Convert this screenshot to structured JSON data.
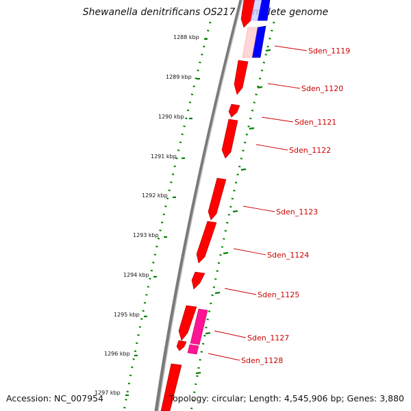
{
  "title": "Shewanella denitrificans OS217, complete genome",
  "footer": {
    "accession": "Accession: NC_007954",
    "summary": "Topology: circular; Length: 4,545,906 bp; Genes: 3,880"
  },
  "colors": {
    "forward_gene": "#ff0000",
    "reverse_gene": "#0000ff",
    "rna_gene": "#ff1493",
    "backbone": "#808080",
    "ticks": "#008000",
    "gene_label": "#cc0000"
  },
  "kbp_ticks": [
    {
      "label": "1288 kbp"
    },
    {
      "label": "1289 kbp"
    },
    {
      "label": "1290 kbp"
    },
    {
      "label": "1291 kbp"
    },
    {
      "label": "1292 kbp"
    },
    {
      "label": "1293 kbp"
    },
    {
      "label": "1294 kbp"
    },
    {
      "label": "1295 kbp"
    },
    {
      "label": "1296 kbp"
    },
    {
      "label": "1297 kbp"
    }
  ],
  "gene_labels": [
    {
      "label": "Sden_1119"
    },
    {
      "label": "Sden_1120"
    },
    {
      "label": "Sden_1121"
    },
    {
      "label": "Sden_1122"
    },
    {
      "label": "Sden_1123"
    },
    {
      "label": "Sden_1124"
    },
    {
      "label": "Sden_1125"
    },
    {
      "label": "Sden_1127"
    },
    {
      "label": "Sden_1128"
    }
  ]
}
